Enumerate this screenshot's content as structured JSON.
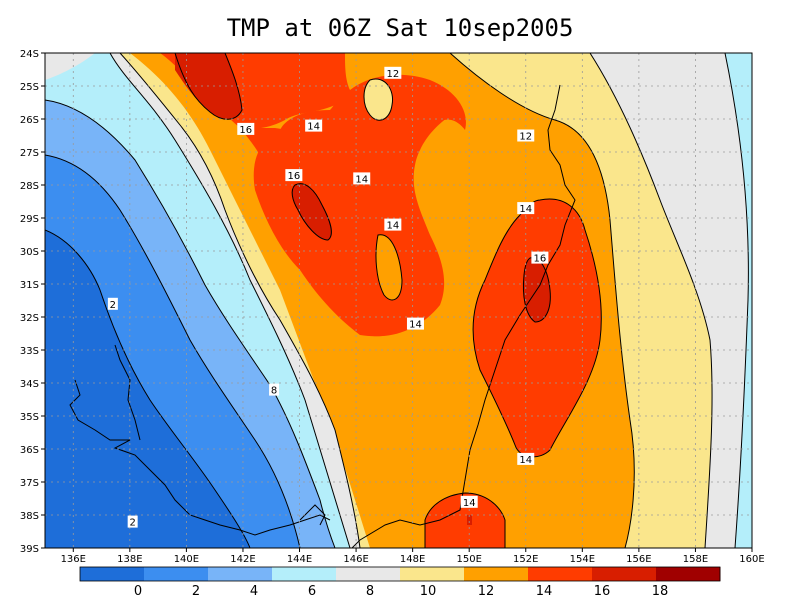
{
  "title": "TMP at 06Z Sat 10sep2005",
  "map": {
    "lat_labels": [
      "24S",
      "25S",
      "26S",
      "27S",
      "28S",
      "29S",
      "30S",
      "31S",
      "32S",
      "33S",
      "34S",
      "35S",
      "36S",
      "37S",
      "38S",
      "39S"
    ],
    "lon_labels": [
      "136E",
      "138E",
      "140E",
      "142E",
      "144E",
      "146E",
      "148E",
      "150E",
      "152E",
      "154E",
      "156E",
      "158E",
      "160E"
    ],
    "contour_labels": [
      {
        "text": "12",
        "lon": 147.3,
        "lat": -24.6
      },
      {
        "text": "16",
        "lon": 142.1,
        "lat": -26.3
      },
      {
        "text": "14",
        "lon": 144.5,
        "lat": -26.2
      },
      {
        "text": "12",
        "lon": 152.0,
        "lat": -26.5
      },
      {
        "text": "16",
        "lon": 143.8,
        "lat": -27.7
      },
      {
        "text": "14",
        "lon": 146.2,
        "lat": -27.8
      },
      {
        "text": "14",
        "lon": 152.0,
        "lat": -28.7
      },
      {
        "text": "14",
        "lon": 147.3,
        "lat": -29.2
      },
      {
        "text": "16",
        "lon": 152.5,
        "lat": -30.2
      },
      {
        "text": "14",
        "lon": 148.1,
        "lat": -32.2
      },
      {
        "text": "2",
        "lon": 137.4,
        "lat": -31.6
      },
      {
        "text": "8",
        "lon": 143.1,
        "lat": -34.2
      },
      {
        "text": "14",
        "lon": 152.0,
        "lat": -36.3
      },
      {
        "text": "14",
        "lon": 150.0,
        "lat": -37.6
      },
      {
        "text": "2",
        "lon": 138.1,
        "lat": -38.2
      }
    ]
  },
  "colorbar": {
    "labels": [
      "0",
      "2",
      "4",
      "6",
      "8",
      "10",
      "12",
      "14",
      "16",
      "18"
    ],
    "colors": [
      "#1e6ed9",
      "#3c8ef0",
      "#78b4f8",
      "#b4eefa",
      "#e8e8e8",
      "#fae68c",
      "#ffa000",
      "#ff3c00",
      "#d81e00",
      "#a00000"
    ]
  }
}
